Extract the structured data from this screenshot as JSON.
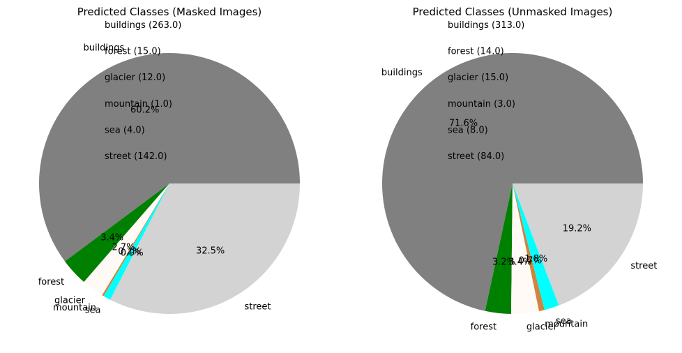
{
  "chart_data": [
    {
      "type": "pie",
      "title": "Predicted Classes (Masked Images)",
      "categories": [
        "buildings",
        "forest",
        "glacier",
        "mountain",
        "sea",
        "street"
      ],
      "values": [
        263.0,
        15.0,
        12.0,
        1.0,
        4.0,
        142.0
      ],
      "colors": [
        "#808080",
        "#008000",
        "#fffaf5",
        "#cd853f",
        "#00ffff",
        "#d3d3d3"
      ],
      "percent_labels": [
        "60.2%",
        "3.4%",
        "2.7%",
        "0.2%",
        "0.9%",
        "32.5%"
      ],
      "count_annotations": [
        "buildings (263.0)",
        "forest (15.0)",
        "glacier (12.0)",
        "mountain (1.0)",
        "sea (4.0)",
        "street (142.0)"
      ]
    },
    {
      "type": "pie",
      "title": "Predicted Classes (Unmasked Images)",
      "categories": [
        "buildings",
        "forest",
        "glacier",
        "mountain",
        "sea",
        "street"
      ],
      "values": [
        313.0,
        14.0,
        15.0,
        3.0,
        8.0,
        84.0
      ],
      "colors": [
        "#808080",
        "#008000",
        "#fffaf5",
        "#cd853f",
        "#00ffff",
        "#d3d3d3"
      ],
      "percent_labels": [
        "71.6%",
        "3.2%",
        "3.4%",
        "0.7%",
        "1.8%",
        "19.2%"
      ],
      "count_annotations": [
        "buildings (313.0)",
        "forest (14.0)",
        "glacier (15.0)",
        "mountain (3.0)",
        "sea (8.0)",
        "street (84.0)"
      ]
    }
  ]
}
